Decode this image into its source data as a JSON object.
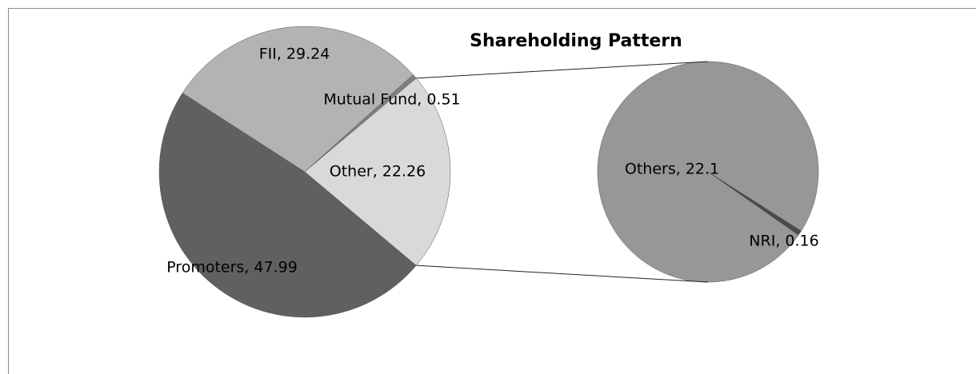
{
  "chart_data": [
    {
      "type": "pie",
      "title": "Shareholding Pattern",
      "values": [
        47.99,
        29.24,
        0.51,
        22.26
      ],
      "value_labels": [
        "Promoters, 47.99",
        "FII, 29.24",
        "Mutual Fund, 0.51",
        "Other, 22.26"
      ],
      "colors": [
        "#606060",
        "#b3b3b3",
        "#7f7f7f",
        "#d9d9d9"
      ]
    },
    {
      "type": "pie",
      "values": [
        22.1,
        0.16
      ],
      "value_labels": [
        "Others, 22.1",
        "NRI, 0.16"
      ],
      "colors": [
        "#979797",
        "#4a4a4a"
      ]
    }
  ]
}
